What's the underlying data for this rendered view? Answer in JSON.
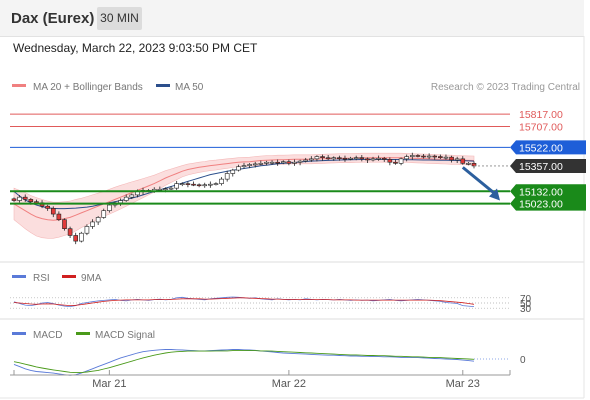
{
  "header": {
    "title": "Dax (Eurex)",
    "timeframe": "30 MIN",
    "datetime": "Wednesday, March 22, 2023 9:03:50 PM CET"
  },
  "legend": {
    "ma20": "MA 20 + Bollinger Bands",
    "ma50": "MA 50",
    "rsi": "RSI",
    "rsi_ma": "9MA",
    "macd": "MACD",
    "macd_signal": "MACD Signal",
    "copyright": "Research © 2023 Trading Central"
  },
  "colors": {
    "resistance": "#e05a5a",
    "pivot": "#1e5ed8",
    "support": "#1a8a1a",
    "current": "#333333",
    "ma20": "#f08080",
    "ma50": "#2c4f8c",
    "band_fill": "#fbdede",
    "candle_up": "#ffffff",
    "candle_down": "#e03a3a",
    "arrow": "#2c5f9e",
    "rsi": "#5a7ad8",
    "rsi_ma": "#d02020",
    "macd": "#5a7ad8",
    "macd_signal": "#4a9a1a"
  },
  "chart_data": {
    "type": "candlestick",
    "x_ticks": [
      "Mar 21",
      "Mar 22",
      "Mar 23"
    ],
    "levels": [
      {
        "name": "resistance 2",
        "value": 15817.0,
        "label": "15817.00"
      },
      {
        "name": "resistance 1",
        "value": 15707.0,
        "label": "15707.00"
      },
      {
        "name": "pivot",
        "value": 15522.0,
        "label": "15522.00"
      },
      {
        "name": "last",
        "value": 15357.0,
        "label": "15357.00"
      },
      {
        "name": "support 1",
        "value": 15132.0,
        "label": "15132.00"
      },
      {
        "name": "support 2",
        "value": 15023.0,
        "label": "15023.00"
      }
    ],
    "y_range": [
      14540,
      15960
    ],
    "close": [
      15050,
      15080,
      15060,
      15040,
      15030,
      15000,
      14980,
      14930,
      14880,
      14800,
      14740,
      14690,
      14760,
      14820,
      14860,
      14900,
      14960,
      15010,
      15030,
      15050,
      15080,
      15100,
      15130,
      15140,
      15135,
      15150,
      15150,
      15155,
      15160,
      15200,
      15200,
      15195,
      15190,
      15185,
      15190,
      15195,
      15200,
      15240,
      15290,
      15320,
      15350,
      15360,
      15370,
      15375,
      15380,
      15390,
      15390,
      15385,
      15395,
      15380,
      15390,
      15400,
      15410,
      15420,
      15440,
      15430,
      15420,
      15430,
      15425,
      15420,
      15425,
      15430,
      15420,
      15410,
      15420,
      15425,
      15415,
      15390,
      15380,
      15420,
      15440,
      15450,
      15445,
      15440,
      15445,
      15440,
      15430,
      15435,
      15410,
      15420,
      15380,
      15380,
      15357
    ],
    "ma20": [
      15020,
      14990,
      14960,
      14930,
      14905,
      14890,
      14880,
      14875,
      14880,
      14890,
      14900,
      14920,
      14940,
      14960,
      14980,
      15000,
      15020,
      15040,
      15060,
      15080,
      15100,
      15120,
      15140,
      15160,
      15180,
      15200,
      15225,
      15250,
      15270,
      15290,
      15310,
      15325,
      15335,
      15345,
      15352,
      15360,
      15365,
      15372,
      15378,
      15384,
      15390,
      15393,
      15395,
      15400,
      15405,
      15408,
      15410,
      15412,
      15412,
      15414,
      15416,
      15416,
      15416,
      15416,
      15418,
      15420,
      15422,
      15424,
      15426,
      15426,
      15426,
      15428,
      15430,
      15430,
      15430,
      15430,
      15430,
      15430,
      15430,
      15430,
      15428,
      15426,
      15424,
      15422,
      15420,
      15418,
      15416,
      15414,
      15412,
      15410,
      15408,
      15406,
      15405
    ],
    "ma50": [
      15130,
      15090,
      15055,
      15030,
      15010,
      14995,
      14985,
      14980,
      14978,
      14978,
      14980,
      14983,
      14987,
      14992,
      15000,
      15010,
      15020,
      15030,
      15040,
      15050,
      15060,
      15072,
      15085,
      15100,
      15115,
      15130,
      15145,
      15160,
      15175,
      15190,
      15205,
      15220,
      15235,
      15250,
      15265,
      15280,
      15290,
      15300,
      15310,
      15318,
      15326,
      15334,
      15342,
      15350,
      15358,
      15364,
      15370,
      15376,
      15380,
      15384,
      15388,
      15392,
      15396,
      15400,
      15402,
      15404,
      15406,
      15408,
      15410,
      15411,
      15412,
      15413,
      15414,
      15415,
      15415,
      15415,
      15415,
      15414,
      15414,
      15413,
      15412,
      15412,
      15411,
      15410,
      15410,
      15409,
      15408,
      15407,
      15406,
      15405,
      15404,
      15402,
      15400
    ],
    "band_halfwidth": [
      140,
      150,
      160,
      165,
      170,
      170,
      165,
      160,
      155,
      150,
      145,
      140,
      130,
      125,
      120,
      115,
      110,
      110,
      108,
      105,
      100,
      95,
      90,
      85,
      80,
      75,
      70,
      65,
      60,
      55,
      50,
      48,
      46,
      45,
      44,
      44,
      44,
      43,
      42,
      41,
      40,
      40,
      40,
      40,
      40,
      40,
      40,
      40,
      40,
      40,
      40,
      40,
      40,
      40,
      40,
      40,
      40,
      40,
      40,
      40,
      40,
      40,
      40,
      40,
      40,
      40,
      40,
      40,
      40,
      40,
      40,
      40,
      40,
      40,
      40,
      40,
      40,
      40,
      40,
      40,
      40,
      40,
      40
    ],
    "rsi": {
      "levels": [
        "70",
        "50",
        "30"
      ],
      "range": [
        0,
        100
      ],
      "rsi": [
        55,
        48,
        42,
        40,
        44,
        50,
        52,
        48,
        42,
        38,
        36,
        40,
        48,
        52,
        55,
        58,
        60,
        62,
        64,
        60,
        58,
        62,
        64,
        62,
        60,
        63,
        65,
        62,
        64,
        70,
        72,
        68,
        66,
        64,
        62,
        66,
        68,
        70,
        72,
        73,
        72,
        70,
        68,
        70,
        66,
        64,
        62,
        66,
        64,
        62,
        64,
        62,
        66,
        64,
        62,
        64,
        63,
        62,
        64,
        62,
        60,
        62,
        60,
        61,
        58,
        60,
        62,
        64,
        60,
        58,
        60,
        62,
        64,
        62,
        60,
        58,
        56,
        52,
        50,
        48,
        40,
        38,
        36
      ],
      "ma": [
        52,
        50,
        48,
        46,
        45,
        46,
        47,
        46,
        44,
        42,
        40,
        41,
        44,
        47,
        50,
        53,
        56,
        58,
        60,
        61,
        62,
        62,
        62,
        62,
        62,
        63,
        63,
        63,
        64,
        65,
        66,
        66,
        66,
        66,
        65,
        65,
        66,
        67,
        68,
        69,
        70,
        70,
        69,
        68,
        67,
        66,
        65,
        65,
        64,
        64,
        63,
        63,
        63,
        63,
        63,
        63,
        63,
        62,
        62,
        62,
        62,
        61,
        61,
        61,
        61,
        61,
        61,
        61,
        61,
        61,
        61,
        61,
        61,
        61,
        61,
        60,
        59,
        57,
        55,
        53,
        51,
        48,
        45
      ]
    },
    "macd": {
      "zero_label": "0",
      "range": [
        -70,
        70
      ],
      "macd": [
        -20,
        -28,
        -36,
        -42,
        -46,
        -48,
        -50,
        -52,
        -55,
        -58,
        -60,
        -58,
        -52,
        -44,
        -36,
        -28,
        -20,
        -12,
        -4,
        4,
        10,
        16,
        22,
        27,
        30,
        32,
        34,
        35,
        35,
        34,
        33,
        32,
        31,
        30,
        30,
        31,
        32,
        33,
        34,
        35,
        35,
        34,
        33,
        32,
        30,
        28,
        26,
        24,
        22,
        21,
        20,
        19,
        18,
        17,
        16,
        15,
        14,
        14,
        13,
        12,
        11,
        11,
        10,
        10,
        9,
        9,
        8,
        8,
        7,
        6,
        6,
        5,
        5,
        4,
        3,
        2,
        1,
        0,
        -1,
        -2,
        -4,
        -6,
        -8
      ],
      "signal": [
        -10,
        -14,
        -19,
        -24,
        -29,
        -33,
        -37,
        -40,
        -43,
        -46,
        -49,
        -50,
        -50,
        -48,
        -45,
        -42,
        -37,
        -32,
        -26,
        -20,
        -14,
        -8,
        -2,
        4,
        9,
        14,
        18,
        22,
        25,
        27,
        28,
        29,
        29,
        29,
        29,
        29,
        30,
        30,
        30,
        31,
        31,
        31,
        31,
        31,
        30,
        30,
        29,
        28,
        27,
        26,
        25,
        24,
        23,
        22,
        21,
        20,
        19,
        18,
        17,
        16,
        15,
        15,
        14,
        13,
        13,
        12,
        12,
        11,
        10,
        10,
        9,
        8,
        8,
        7,
        6,
        5,
        5,
        4,
        3,
        2,
        1,
        0,
        -1
      ]
    }
  }
}
